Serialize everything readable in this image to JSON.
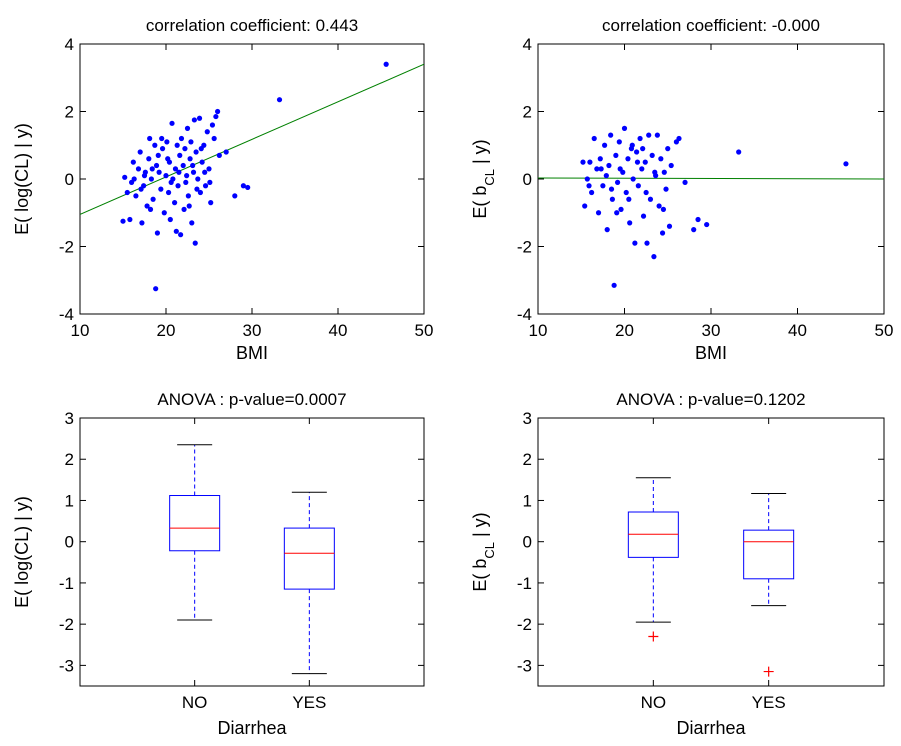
{
  "chart_data": [
    {
      "type": "scatter",
      "title": "correlation coefficient: 0.443",
      "xlabel": "BMI",
      "ylabel": "E( log(CL) | y)",
      "ylabel_sub": "",
      "xlim": [
        10,
        50
      ],
      "ylim": [
        -4,
        4
      ],
      "xticks": [
        10,
        20,
        30,
        40,
        50
      ],
      "yticks": [
        -4,
        -2,
        0,
        2,
        4
      ],
      "grid": false,
      "point_color": "#0000ff",
      "line_color": "#008000",
      "fit_line": {
        "x": [
          10,
          50
        ],
        "y": [
          -1.05,
          3.4
        ]
      },
      "points": [
        [
          15.2,
          0.05
        ],
        [
          15.5,
          -0.4
        ],
        [
          15.8,
          -1.2
        ],
        [
          16.0,
          -0.1
        ],
        [
          16.2,
          0.5
        ],
        [
          16.5,
          -0.5
        ],
        [
          16.8,
          0.3
        ],
        [
          17.0,
          0.8
        ],
        [
          17.2,
          -1.3
        ],
        [
          17.4,
          -0.2
        ],
        [
          17.6,
          0.2
        ],
        [
          17.8,
          -0.8
        ],
        [
          18.0,
          0.6
        ],
        [
          18.1,
          1.2
        ],
        [
          18.3,
          0.0
        ],
        [
          18.5,
          -0.6
        ],
        [
          18.7,
          1.0
        ],
        [
          18.8,
          -3.25
        ],
        [
          18.9,
          0.4
        ],
        [
          19.0,
          -1.6
        ],
        [
          19.2,
          0.2
        ],
        [
          19.4,
          -0.3
        ],
        [
          19.6,
          0.9
        ],
        [
          19.8,
          -1.0
        ],
        [
          20.0,
          0.1
        ],
        [
          20.1,
          1.1
        ],
        [
          20.3,
          -0.4
        ],
        [
          20.4,
          0.5
        ],
        [
          20.5,
          -1.2
        ],
        [
          20.7,
          1.65
        ],
        [
          20.8,
          0.0
        ],
        [
          21.0,
          -0.7
        ],
        [
          21.1,
          0.3
        ],
        [
          21.3,
          1.0
        ],
        [
          21.4,
          -0.2
        ],
        [
          21.6,
          0.7
        ],
        [
          21.7,
          -1.65
        ],
        [
          21.8,
          1.2
        ],
        [
          22.0,
          0.4
        ],
        [
          22.1,
          -0.9
        ],
        [
          22.2,
          0.9
        ],
        [
          22.4,
          0.1
        ],
        [
          22.5,
          1.5
        ],
        [
          22.6,
          -0.5
        ],
        [
          22.8,
          0.6
        ],
        [
          22.9,
          1.1
        ],
        [
          23.0,
          -1.3
        ],
        [
          23.2,
          0.2
        ],
        [
          23.3,
          1.75
        ],
        [
          23.4,
          -1.9
        ],
        [
          23.5,
          0.8
        ],
        [
          23.7,
          0.0
        ],
        [
          23.9,
          1.8
        ],
        [
          24.0,
          -0.4
        ],
        [
          24.2,
          0.5
        ],
        [
          24.4,
          1.0
        ],
        [
          24.6,
          -0.2
        ],
        [
          24.8,
          1.4
        ],
        [
          25.0,
          0.3
        ],
        [
          25.2,
          -0.7
        ],
        [
          25.4,
          1.6
        ],
        [
          25.6,
          1.2
        ],
        [
          25.8,
          1.85
        ],
        [
          26.0,
          2.0
        ],
        [
          26.2,
          0.7
        ],
        [
          27.0,
          0.8
        ],
        [
          28.0,
          -0.5
        ],
        [
          29.0,
          -0.2
        ],
        [
          29.5,
          -0.25
        ],
        [
          33.2,
          2.35
        ],
        [
          45.6,
          3.4
        ],
        [
          15.0,
          -1.25
        ],
        [
          16.3,
          0.0
        ],
        [
          17.1,
          -0.3
        ],
        [
          18.2,
          -0.9
        ],
        [
          19.1,
          0.7
        ],
        [
          20.2,
          0.6
        ],
        [
          21.2,
          -1.55
        ],
        [
          22.3,
          -0.1
        ],
        [
          23.1,
          0.4
        ],
        [
          24.1,
          0.9
        ],
        [
          25.1,
          -0.1
        ],
        [
          19.5,
          1.2
        ],
        [
          20.6,
          -0.1
        ],
        [
          21.5,
          0.2
        ],
        [
          22.7,
          -0.8
        ],
        [
          23.6,
          -0.3
        ],
        [
          24.5,
          0.2
        ],
        [
          18.4,
          0.3
        ],
        [
          17.5,
          0.1
        ]
      ]
    },
    {
      "type": "scatter",
      "title": "correlation coefficient: -0.000",
      "xlabel": "BMI",
      "ylabel": "E( b",
      "ylabel_sub": "CL",
      "ylabel_tail": " | y)",
      "xlim": [
        10,
        50
      ],
      "ylim": [
        -4,
        4
      ],
      "xticks": [
        10,
        20,
        30,
        40,
        50
      ],
      "yticks": [
        -4,
        -2,
        0,
        2,
        4
      ],
      "grid": false,
      "point_color": "#0000ff",
      "line_color": "#008000",
      "fit_line": {
        "x": [
          10,
          50
        ],
        "y": [
          0.03,
          0.0
        ]
      },
      "points": [
        [
          15.2,
          0.5
        ],
        [
          15.4,
          -0.8
        ],
        [
          15.7,
          0.0
        ],
        [
          16.0,
          0.5
        ],
        [
          16.2,
          -0.4
        ],
        [
          16.5,
          1.2
        ],
        [
          16.8,
          0.3
        ],
        [
          17.0,
          -1.0
        ],
        [
          17.2,
          0.6
        ],
        [
          17.5,
          -0.2
        ],
        [
          17.7,
          1.0
        ],
        [
          17.9,
          0.1
        ],
        [
          18.0,
          -1.5
        ],
        [
          18.2,
          0.4
        ],
        [
          18.4,
          1.3
        ],
        [
          18.6,
          -0.6
        ],
        [
          18.8,
          -3.15
        ],
        [
          19.0,
          0.7
        ],
        [
          19.2,
          -0.1
        ],
        [
          19.4,
          1.1
        ],
        [
          19.6,
          -0.9
        ],
        [
          19.8,
          0.2
        ],
        [
          20.0,
          1.5
        ],
        [
          20.2,
          -0.4
        ],
        [
          20.4,
          0.6
        ],
        [
          20.6,
          -1.3
        ],
        [
          20.8,
          0.9
        ],
        [
          21.0,
          0.0
        ],
        [
          21.2,
          -1.9
        ],
        [
          21.4,
          0.8
        ],
        [
          21.6,
          -0.2
        ],
        [
          21.8,
          1.2
        ],
        [
          22.0,
          0.3
        ],
        [
          22.2,
          -1.1
        ],
        [
          22.4,
          0.5
        ],
        [
          22.6,
          -1.9
        ],
        [
          22.8,
          1.3
        ],
        [
          23.0,
          -0.6
        ],
        [
          23.2,
          0.7
        ],
        [
          23.4,
          -2.3
        ],
        [
          23.6,
          0.1
        ],
        [
          23.8,
          1.3
        ],
        [
          24.0,
          -0.8
        ],
        [
          24.2,
          0.6
        ],
        [
          24.4,
          -1.6
        ],
        [
          24.6,
          0.2
        ],
        [
          24.8,
          -0.3
        ],
        [
          25.0,
          0.9
        ],
        [
          25.2,
          -1.4
        ],
        [
          25.4,
          0.4
        ],
        [
          26.0,
          1.1
        ],
        [
          26.3,
          1.2
        ],
        [
          27.0,
          -0.1
        ],
        [
          28.0,
          -1.5
        ],
        [
          28.5,
          -1.2
        ],
        [
          29.5,
          -1.35
        ],
        [
          33.2,
          0.8
        ],
        [
          45.6,
          0.45
        ],
        [
          15.9,
          -0.2
        ],
        [
          17.3,
          0.3
        ],
        [
          18.5,
          -0.3
        ],
        [
          19.5,
          0.3
        ],
        [
          20.5,
          -0.6
        ],
        [
          21.5,
          0.5
        ],
        [
          22.5,
          -0.4
        ],
        [
          23.5,
          0.2
        ],
        [
          24.5,
          -0.9
        ],
        [
          20.9,
          1.0
        ],
        [
          22.1,
          0.9
        ],
        [
          19.1,
          -1.0
        ]
      ]
    },
    {
      "type": "box",
      "title": "ANOVA : p-value=0.0007",
      "xlabel": "Diarrhea",
      "ylabel": "E( log(CL) | y)",
      "ylabel_sub": "",
      "categories": [
        "NO",
        "YES"
      ],
      "ylim": [
        -3.5,
        3
      ],
      "yticks": [
        -3,
        -2,
        -1,
        0,
        1,
        2,
        3
      ],
      "box_color": "#0000ff",
      "median_color": "#ff0000",
      "boxes": [
        {
          "whisker_low": -1.9,
          "q1": -0.22,
          "median": 0.33,
          "q3": 1.12,
          "whisker_high": 2.35,
          "outliers": []
        },
        {
          "whisker_low": -3.2,
          "q1": -1.15,
          "median": -0.28,
          "q3": 0.33,
          "whisker_high": 1.2,
          "outliers": []
        }
      ]
    },
    {
      "type": "box",
      "title": "ANOVA : p-value=0.1202",
      "xlabel": "Diarrhea",
      "ylabel": "E( b",
      "ylabel_sub": "CL",
      "ylabel_tail": " | y)",
      "categories": [
        "NO",
        "YES"
      ],
      "ylim": [
        -3.5,
        3
      ],
      "yticks": [
        -3,
        -2,
        -1,
        0,
        1,
        2,
        3
      ],
      "box_color": "#0000ff",
      "median_color": "#ff0000",
      "boxes": [
        {
          "whisker_low": -1.95,
          "q1": -0.38,
          "median": 0.18,
          "q3": 0.72,
          "whisker_high": 1.55,
          "outliers": [
            -2.3
          ]
        },
        {
          "whisker_low": -1.55,
          "q1": -0.9,
          "median": 0.0,
          "q3": 0.28,
          "whisker_high": 1.17,
          "outliers": [
            -3.15
          ]
        }
      ]
    }
  ]
}
